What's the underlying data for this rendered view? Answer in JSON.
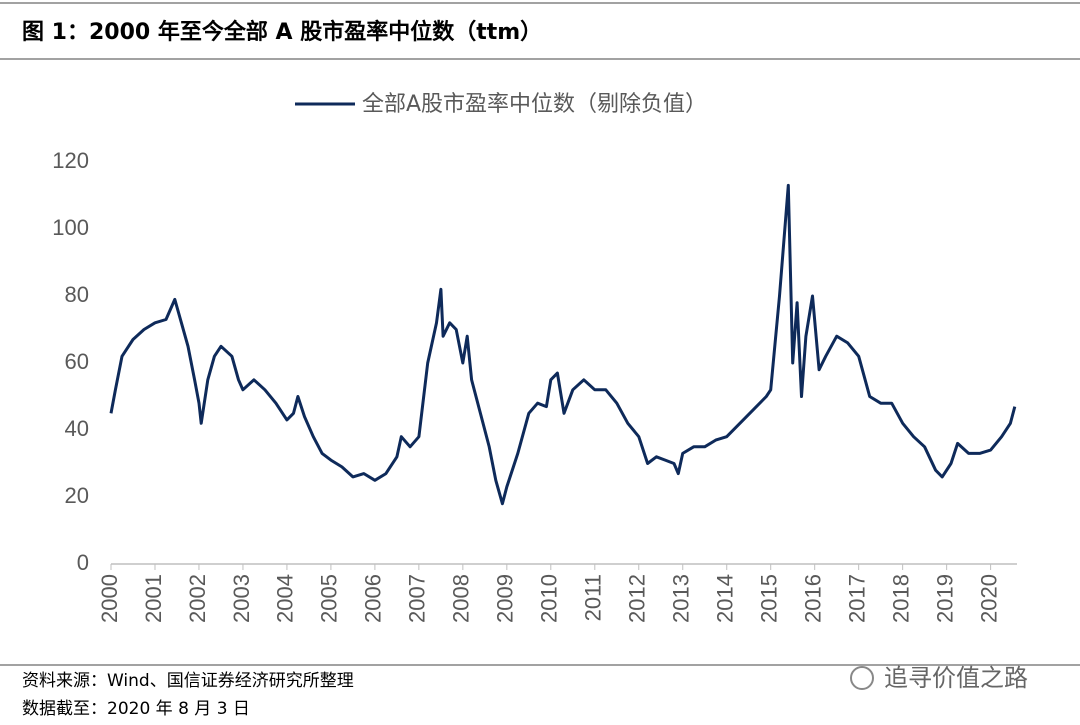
{
  "chart_data": {
    "type": "line",
    "title": "图 1：2000 年至今全部 A 股市盈率中位数（ttm）",
    "source": "资料来源：Wind、国信证券经济研究所整理",
    "date_note": "数据截至：2020 年 8 月 3 日",
    "watermark": "追寻价值之路",
    "xlim": [
      2000,
      2020.6
    ],
    "xticks": [
      2000,
      2001,
      2002,
      2003,
      2004,
      2005,
      2006,
      2007,
      2008,
      2009,
      2010,
      2011,
      2012,
      2013,
      2014,
      2015,
      2016,
      2017,
      2018,
      2019,
      2020
    ],
    "ylim": [
      0,
      120
    ],
    "yticks": [
      0,
      20,
      40,
      60,
      80,
      100,
      120
    ],
    "grid": false,
    "legend": "top",
    "series": [
      {
        "name": "全部A股市盈率中位数（剔除负值）",
        "color": "#0e2a5a",
        "x": [
          2000.0,
          2000.1,
          2000.25,
          2000.5,
          2000.75,
          2001.0,
          2001.25,
          2001.45,
          2001.6,
          2001.75,
          2001.9,
          2002.0,
          2002.05,
          2002.2,
          2002.35,
          2002.5,
          2002.75,
          2002.9,
          2003.0,
          2003.25,
          2003.5,
          2003.75,
          2004.0,
          2004.15,
          2004.25,
          2004.4,
          2004.6,
          2004.8,
          2005.0,
          2005.25,
          2005.5,
          2005.75,
          2006.0,
          2006.25,
          2006.5,
          2006.6,
          2006.8,
          2007.0,
          2007.2,
          2007.4,
          2007.5,
          2007.55,
          2007.7,
          2007.85,
          2008.0,
          2008.1,
          2008.2,
          2008.4,
          2008.6,
          2008.75,
          2008.9,
          2009.0,
          2009.25,
          2009.5,
          2009.7,
          2009.9,
          2010.0,
          2010.15,
          2010.3,
          2010.5,
          2010.75,
          2011.0,
          2011.25,
          2011.5,
          2011.75,
          2012.0,
          2012.2,
          2012.4,
          2012.6,
          2012.8,
          2012.9,
          2013.0,
          2013.25,
          2013.5,
          2013.75,
          2014.0,
          2014.3,
          2014.6,
          2014.9,
          2015.0,
          2015.2,
          2015.4,
          2015.5,
          2015.6,
          2015.7,
          2015.8,
          2015.95,
          2016.1,
          2016.25,
          2016.5,
          2016.75,
          2017.0,
          2017.25,
          2017.5,
          2017.75,
          2018.0,
          2018.25,
          2018.5,
          2018.75,
          2018.9,
          2019.1,
          2019.25,
          2019.5,
          2019.75,
          2020.0,
          2020.25,
          2020.45,
          2020.55
        ],
        "values": [
          45,
          52,
          62,
          67,
          70,
          72,
          73,
          79,
          72,
          65,
          55,
          48,
          42,
          55,
          62,
          65,
          62,
          55,
          52,
          55,
          52,
          48,
          43,
          45,
          50,
          44,
          38,
          33,
          31,
          29,
          26,
          27,
          25,
          27,
          32,
          38,
          35,
          38,
          60,
          72,
          82,
          68,
          72,
          70,
          60,
          68,
          55,
          45,
          35,
          25,
          18,
          23,
          33,
          45,
          48,
          47,
          55,
          57,
          45,
          52,
          55,
          52,
          52,
          48,
          42,
          38,
          30,
          32,
          31,
          30,
          27,
          33,
          35,
          35,
          37,
          38,
          42,
          46,
          50,
          52,
          80,
          113,
          60,
          78,
          50,
          68,
          80,
          58,
          62,
          68,
          66,
          62,
          50,
          48,
          48,
          42,
          38,
          35,
          28,
          26,
          30,
          36,
          33,
          33,
          34,
          38,
          42,
          47
        ]
      }
    ]
  }
}
